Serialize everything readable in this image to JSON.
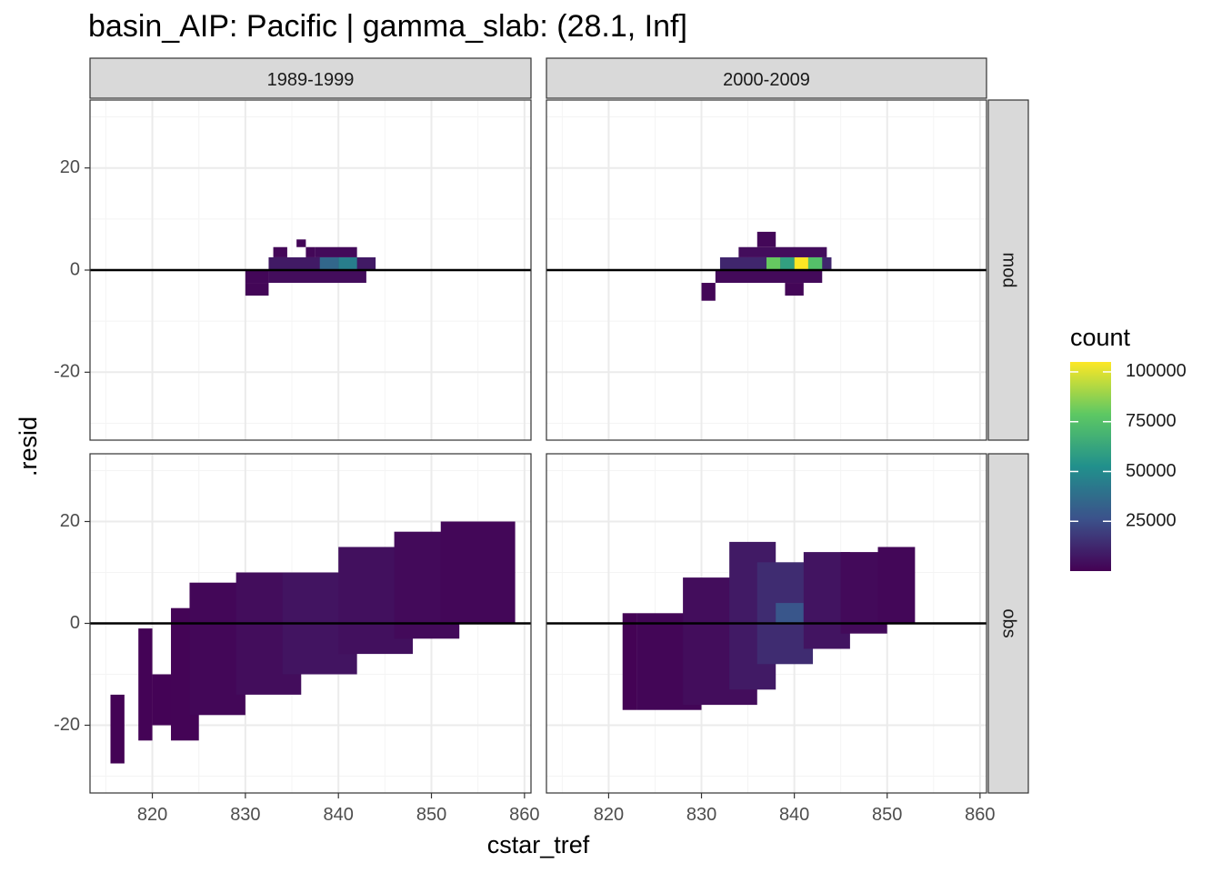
{
  "chart_data": {
    "type": "heatmap",
    "title": "basin_AIP: Pacific | gamma_slab: (28.1, Inf]",
    "xlabel": "cstar_tref",
    "ylabel": ".resid",
    "xlim": [
      813.3,
      860.7
    ],
    "ylim": [
      -33.3,
      33.3
    ],
    "x_ticks": [
      820,
      830,
      840,
      850,
      860
    ],
    "y_ticks": [
      -20,
      0,
      20
    ],
    "col_facets": [
      "1989-1999",
      "2000-2009"
    ],
    "row_facets": [
      "mod",
      "obs"
    ],
    "hline_y": 0,
    "grid": true,
    "legend": {
      "title": "count",
      "position": "right",
      "ticks": [
        25000,
        50000,
        75000,
        100000
      ],
      "range": [
        0,
        105000
      ]
    },
    "colors": {
      "low": "#440154",
      "mid1": "#3b528b",
      "mid2": "#21908c",
      "mid3": "#5dc863",
      "high": "#fde725",
      "strip": "#d9d9d9",
      "grid": "#ebebeb",
      "border": "#333333"
    },
    "bin_width": {
      "x": 1.333,
      "y": 2.5
    },
    "facets": [
      {
        "col": "1989-1999",
        "row": "mod",
        "cells": [
          {
            "x_range": [
              830,
              832.5
            ],
            "y_range": [
              -5,
              -2.5
            ],
            "count": 1500
          },
          {
            "x_range": [
              830,
              832.5
            ],
            "y_range": [
              -2.5,
              0
            ],
            "count": 2000
          },
          {
            "x_range": [
              832.5,
              843
            ],
            "y_range": [
              -2.5,
              0
            ],
            "count": 4000
          },
          {
            "x_range": [
              832.5,
              844
            ],
            "y_range": [
              0,
              2.5
            ],
            "count": 8000
          },
          {
            "x_range": [
              833,
              834.5
            ],
            "y_range": [
              2.5,
              4.5
            ],
            "count": 2000
          },
          {
            "x_range": [
              835.5,
              836.5
            ],
            "y_range": [
              4.5,
              6
            ],
            "count": 1500
          },
          {
            "x_range": [
              836.5,
              837.5
            ],
            "y_range": [
              2.5,
              4.5
            ],
            "count": 2000
          },
          {
            "x_range": [
              837.5,
              842
            ],
            "y_range": [
              2.5,
              4.5
            ],
            "count": 3000
          },
          {
            "x_range": [
              838,
              840
            ],
            "y_range": [
              0,
              2.5
            ],
            "count": 35000
          },
          {
            "x_range": [
              840,
              842
            ],
            "y_range": [
              0,
              2.5
            ],
            "count": 45000
          }
        ]
      },
      {
        "col": "2000-2009",
        "row": "mod",
        "cells": [
          {
            "x_range": [
              830,
              831.5
            ],
            "y_range": [
              -6,
              -2.5
            ],
            "count": 1500
          },
          {
            "x_range": [
              831.5,
              843
            ],
            "y_range": [
              -2.5,
              0
            ],
            "count": 3000
          },
          {
            "x_range": [
              839,
              841
            ],
            "y_range": [
              -5,
              -2.5
            ],
            "count": 1500
          },
          {
            "x_range": [
              832,
              844
            ],
            "y_range": [
              0,
              2.5
            ],
            "count": 12000
          },
          {
            "x_range": [
              837,
              838.5
            ],
            "y_range": [
              0,
              2.5
            ],
            "count": 80000
          },
          {
            "x_range": [
              840,
              841.5
            ],
            "y_range": [
              0,
              2.5
            ],
            "count": 105000
          },
          {
            "x_range": [
              838.5,
              840
            ],
            "y_range": [
              0,
              2.5
            ],
            "count": 60000
          },
          {
            "x_range": [
              841.5,
              843
            ],
            "y_range": [
              0,
              2.5
            ],
            "count": 75000
          },
          {
            "x_range": [
              834,
              843.5
            ],
            "y_range": [
              2.5,
              4.5
            ],
            "count": 4000
          },
          {
            "x_range": [
              836,
              838
            ],
            "y_range": [
              4.5,
              7.5
            ],
            "count": 2000
          }
        ]
      },
      {
        "col": "1989-1999",
        "row": "obs",
        "cells": [
          {
            "x_range": [
              815.5,
              817
            ],
            "y_range": [
              -27.5,
              -14
            ],
            "count": 500
          },
          {
            "x_range": [
              818.5,
              820
            ],
            "y_range": [
              -23,
              -1
            ],
            "count": 800
          },
          {
            "x_range": [
              820,
              823
            ],
            "y_range": [
              -20,
              -10
            ],
            "count": 800
          },
          {
            "x_range": [
              822,
              825
            ],
            "y_range": [
              -23,
              3
            ],
            "count": 1000
          },
          {
            "x_range": [
              824,
              830
            ],
            "y_range": [
              -18,
              8
            ],
            "count": 2000
          },
          {
            "x_range": [
              829,
              836
            ],
            "y_range": [
              -14,
              10
            ],
            "count": 4000
          },
          {
            "x_range": [
              834,
              842
            ],
            "y_range": [
              -10,
              10
            ],
            "count": 6000
          },
          {
            "x_range": [
              840,
              848
            ],
            "y_range": [
              -6,
              15
            ],
            "count": 5000
          },
          {
            "x_range": [
              846,
              853
            ],
            "y_range": [
              -3,
              18
            ],
            "count": 3000
          },
          {
            "x_range": [
              851,
              859
            ],
            "y_range": [
              0,
              20
            ],
            "count": 2000
          }
        ]
      },
      {
        "col": "2000-2009",
        "row": "obs",
        "cells": [
          {
            "x_range": [
              821.5,
              823
            ],
            "y_range": [
              -17,
              2
            ],
            "count": 600
          },
          {
            "x_range": [
              823,
              830
            ],
            "y_range": [
              -17,
              2
            ],
            "count": 1500
          },
          {
            "x_range": [
              828,
              836
            ],
            "y_range": [
              -16,
              9
            ],
            "count": 4000
          },
          {
            "x_range": [
              833,
              838
            ],
            "y_range": [
              -13,
              16
            ],
            "count": 8000
          },
          {
            "x_range": [
              836,
              842
            ],
            "y_range": [
              -8,
              12
            ],
            "count": 14000
          },
          {
            "x_range": [
              838,
              841
            ],
            "y_range": [
              0,
              4
            ],
            "count": 28000
          },
          {
            "x_range": [
              841,
              846
            ],
            "y_range": [
              -5,
              14
            ],
            "count": 6000
          },
          {
            "x_range": [
              845,
              850
            ],
            "y_range": [
              -2,
              14
            ],
            "count": 3000
          },
          {
            "x_range": [
              849,
              853
            ],
            "y_range": [
              0,
              15
            ],
            "count": 2000
          }
        ]
      }
    ]
  }
}
